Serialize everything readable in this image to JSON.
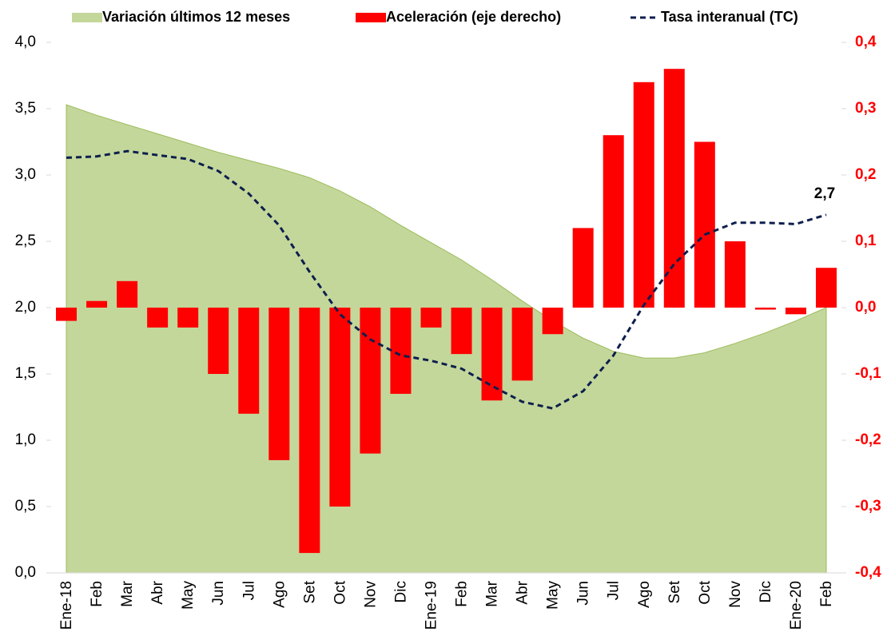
{
  "chart_data": {
    "type": "combo",
    "categories": [
      "Ene-18",
      "Feb",
      "Mar",
      "Abr",
      "May",
      "Jun",
      "Jul",
      "Ago",
      "Set",
      "Oct",
      "Nov",
      "Dic",
      "Ene-19",
      "Feb",
      "Mar",
      "Abr",
      "May",
      "Jun",
      "Jul",
      "Ago",
      "Set",
      "Oct",
      "Nov",
      "Dic",
      "Ene-20",
      "Feb"
    ],
    "series": [
      {
        "name": "Variación últimos 12 meses",
        "type": "area",
        "color": "#c4d79b",
        "values": [
          3.53,
          3.45,
          3.38,
          3.31,
          3.24,
          3.17,
          3.11,
          3.05,
          2.98,
          2.88,
          2.76,
          2.62,
          2.49,
          2.36,
          2.21,
          2.05,
          1.9,
          1.77,
          1.67,
          1.62,
          1.62,
          1.66,
          1.73,
          1.81,
          1.9,
          2.0
        ]
      },
      {
        "name": "Aceleración (eje derecho)",
        "type": "bar",
        "axis": "y2",
        "color": "#ff0000",
        "values": [
          -0.02,
          0.01,
          0.04,
          -0.03,
          -0.03,
          -0.1,
          -0.16,
          -0.23,
          -0.37,
          -0.3,
          -0.22,
          -0.13,
          -0.03,
          -0.07,
          -0.14,
          -0.11,
          -0.04,
          0.12,
          0.26,
          0.34,
          0.36,
          0.25,
          0.1,
          -0.003,
          -0.01,
          0.06
        ]
      },
      {
        "name": "Tasa interanual (TC)",
        "type": "line",
        "color": "#0d1f4d",
        "values": [
          3.13,
          3.14,
          3.18,
          3.15,
          3.12,
          3.03,
          2.86,
          2.62,
          2.27,
          1.95,
          1.76,
          1.64,
          1.6,
          1.54,
          1.41,
          1.29,
          1.24,
          1.37,
          1.64,
          2.02,
          2.33,
          2.55,
          2.64,
          2.64,
          2.63,
          2.7
        ]
      }
    ],
    "annotation": "2,7",
    "ylim": [
      0,
      4
    ],
    "yticks": [
      {
        "value": 0,
        "label": "0,0"
      },
      {
        "value": 0.5,
        "label": "0,5"
      },
      {
        "value": 1,
        "label": "1,0"
      },
      {
        "value": 1.5,
        "label": "1,5"
      },
      {
        "value": 2,
        "label": "2,0"
      },
      {
        "value": 2.5,
        "label": "2,5"
      },
      {
        "value": 3,
        "label": "3,0"
      },
      {
        "value": 3.5,
        "label": "3,5"
      },
      {
        "value": 4,
        "label": "4,0"
      }
    ],
    "y2lim": [
      -0.4,
      0.4
    ],
    "y2ticks": [
      {
        "value": -0.4,
        "label": "-0,4"
      },
      {
        "value": -0.3,
        "label": "-0,3"
      },
      {
        "value": -0.2,
        "label": "-0,2"
      },
      {
        "value": -0.1,
        "label": "-0,1"
      },
      {
        "value": 0,
        "label": "0,0"
      },
      {
        "value": 0.1,
        "label": "0,1"
      },
      {
        "value": 0.2,
        "label": "0,2"
      },
      {
        "value": 0.3,
        "label": "0,3"
      },
      {
        "value": 0.4,
        "label": "0,4"
      }
    ]
  }
}
